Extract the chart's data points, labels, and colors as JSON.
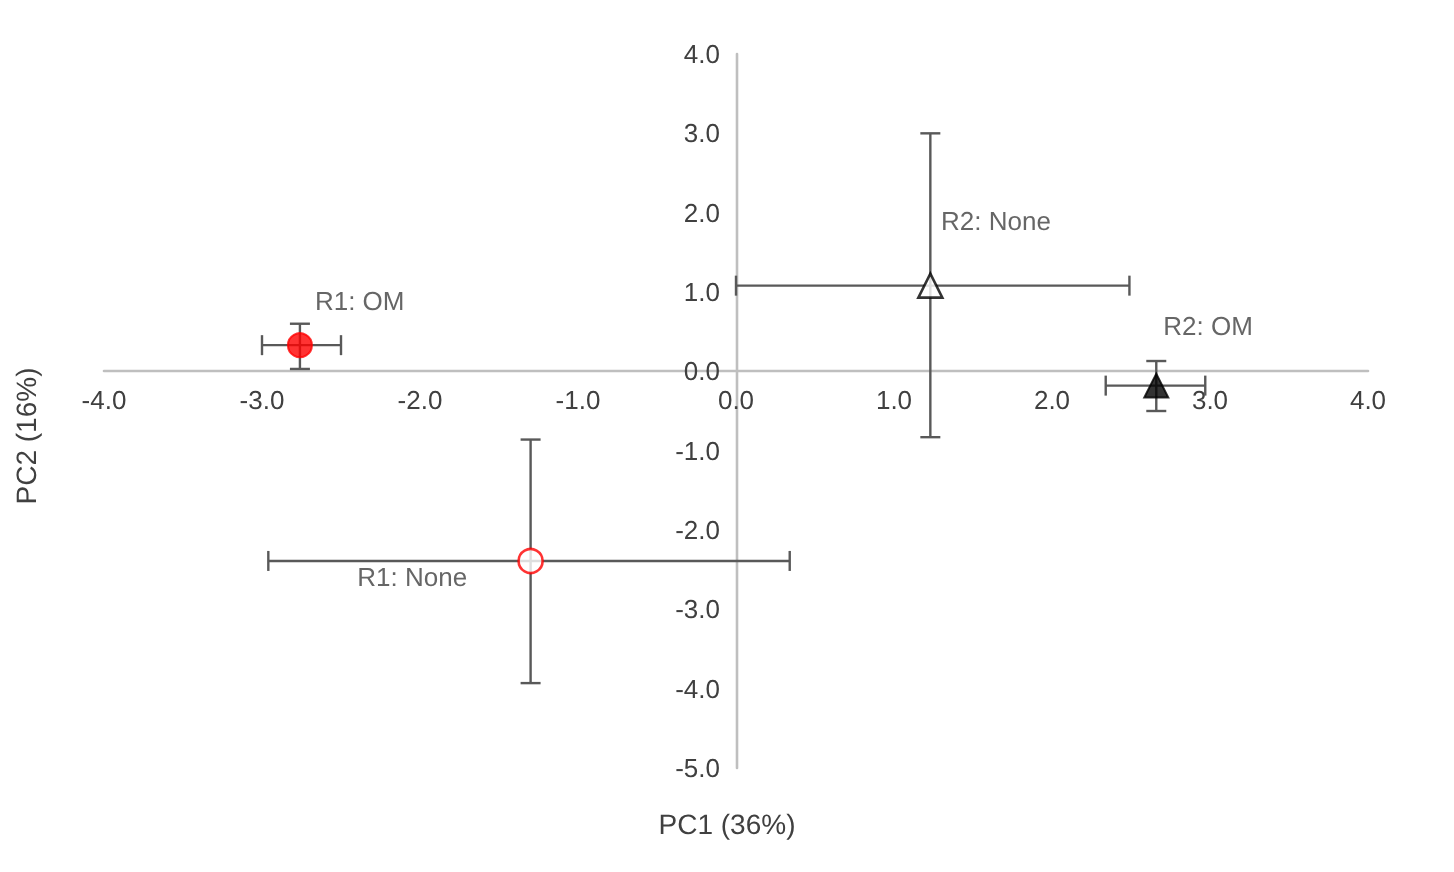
{
  "chart_data": {
    "type": "scatter",
    "xlabel": "PC1 (36%)",
    "ylabel": "PC2 (16%)",
    "xlim": [
      -4,
      4
    ],
    "ylim": [
      -5,
      4
    ],
    "xticks": [
      {
        "value": -4,
        "label": "-4.0"
      },
      {
        "value": -3,
        "label": "-3.0"
      },
      {
        "value": -2,
        "label": "-2.0"
      },
      {
        "value": -1,
        "label": "-1.0"
      },
      {
        "value": 0,
        "label": "0.0"
      },
      {
        "value": 1,
        "label": "1.0"
      },
      {
        "value": 2,
        "label": "2.0"
      },
      {
        "value": 3,
        "label": "3.0"
      },
      {
        "value": 4,
        "label": "4.0"
      }
    ],
    "yticks": [
      {
        "value": -5,
        "label": "-5.0"
      },
      {
        "value": -4,
        "label": "-4.0"
      },
      {
        "value": -3,
        "label": "-3.0"
      },
      {
        "value": -2,
        "label": "-2.0"
      },
      {
        "value": -1,
        "label": "-1.0"
      },
      {
        "value": 0,
        "label": "0.0"
      },
      {
        "value": 1,
        "label": "1.0"
      },
      {
        "value": 2,
        "label": "2.0"
      },
      {
        "value": 3,
        "label": "3.0"
      },
      {
        "value": 4,
        "label": "4.0"
      }
    ],
    "grid": false,
    "legend": false,
    "series": [
      {
        "name": "R1: OM",
        "color": "#ff0000",
        "marker": "circle",
        "x": [
          -2.76
        ],
        "values": [
          0.33
        ],
        "xerrors": [
          [
            -3.0,
            -2.5
          ]
        ],
        "errors": [
          [
            0.03,
            0.6
          ]
        ]
      },
      {
        "name": "R1: None",
        "color": "#ff0000",
        "marker": "circle",
        "line_style": "none",
        "x": [
          -1.3
        ],
        "values": [
          -2.39
        ],
        "xerrors": [
          [
            -2.96,
            0.34
          ]
        ],
        "errors": [
          [
            -3.93,
            -0.86
          ]
        ]
      },
      {
        "name": "R2: None",
        "color": "#000000",
        "marker": "triangle",
        "line_style": "none",
        "x": [
          1.23
        ],
        "values": [
          1.08
        ],
        "xerrors": [
          [
            0.0,
            2.49
          ]
        ],
        "errors": [
          [
            -0.83,
            3.0
          ]
        ]
      },
      {
        "name": "R2: OM",
        "color": "#000000",
        "marker": "triangle",
        "x": [
          2.66
        ],
        "values": [
          -0.18
        ],
        "xerrors": [
          [
            2.34,
            2.97
          ]
        ],
        "errors": [
          [
            -0.5,
            0.13
          ]
        ]
      }
    ]
  }
}
